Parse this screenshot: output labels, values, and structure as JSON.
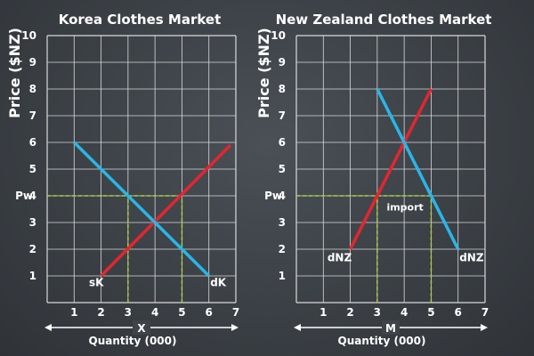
{
  "colors": {
    "supply": "#e3262f",
    "demand": "#29b6e8",
    "guide": "#a6d22a",
    "grid": "#d9d9d9",
    "text": "#ffffff",
    "axis_arrow": "#ffffff"
  },
  "chart_data": [
    {
      "type": "line",
      "title": "Korea Clothes Market",
      "ylabel": "Price ($NZ)",
      "xlabel": "Quantity (000)",
      "axis_letter": "X",
      "xlim": [
        0,
        7
      ],
      "ylim": [
        0,
        10
      ],
      "x_ticks": [
        1,
        2,
        3,
        4,
        5,
        6,
        7
      ],
      "y_ticks": [
        1,
        2,
        3,
        4,
        5,
        6,
        7,
        8,
        9,
        10
      ],
      "world_price": {
        "label": "Pw",
        "value": 4
      },
      "series": [
        {
          "name": "sK",
          "role": "supply",
          "x": [
            2,
            6.8
          ],
          "y": [
            1,
            5.9
          ]
        },
        {
          "name": "dK",
          "role": "demand",
          "x": [
            1,
            6
          ],
          "y": [
            6,
            1
          ]
        }
      ],
      "guides": [
        {
          "x": [
            0,
            5
          ],
          "y": [
            4,
            4
          ]
        },
        {
          "x": [
            3,
            3
          ],
          "y": [
            0,
            4
          ]
        },
        {
          "x": [
            5,
            5
          ],
          "y": [
            0,
            4
          ]
        }
      ],
      "labels": [
        {
          "text": "sK",
          "x": 1.55,
          "y": 0.62
        },
        {
          "text": "dK",
          "x": 6.05,
          "y": 0.62
        }
      ]
    },
    {
      "type": "line",
      "title": "New Zealand Clothes Market",
      "ylabel": "Price ($NZ)",
      "xlabel": "Quantity (000)",
      "axis_letter": "M",
      "xlim": [
        0,
        7
      ],
      "ylim": [
        0,
        10
      ],
      "x_ticks": [
        1,
        2,
        3,
        4,
        5,
        6,
        7
      ],
      "y_ticks": [
        1,
        2,
        3,
        4,
        5,
        6,
        7,
        8,
        9,
        10
      ],
      "world_price": {
        "label": "Pw",
        "value": 4
      },
      "series": [
        {
          "name": "dNZ",
          "role": "supply",
          "x": [
            2,
            5
          ],
          "y": [
            2,
            8
          ]
        },
        {
          "name": "dNZ",
          "role": "demand",
          "x": [
            3,
            6
          ],
          "y": [
            8,
            2
          ]
        }
      ],
      "guides": [
        {
          "x": [
            0,
            5
          ],
          "y": [
            4,
            4
          ]
        },
        {
          "x": [
            3,
            3
          ],
          "y": [
            0,
            4
          ]
        },
        {
          "x": [
            5,
            5
          ],
          "y": [
            0,
            4
          ]
        }
      ],
      "labels": [
        {
          "text": "dNZ",
          "x": 1.15,
          "y": 1.55
        },
        {
          "text": "dNZ",
          "x": 6.05,
          "y": 1.55
        },
        {
          "text": "import",
          "x": 3.35,
          "y": 3.45
        }
      ]
    }
  ]
}
